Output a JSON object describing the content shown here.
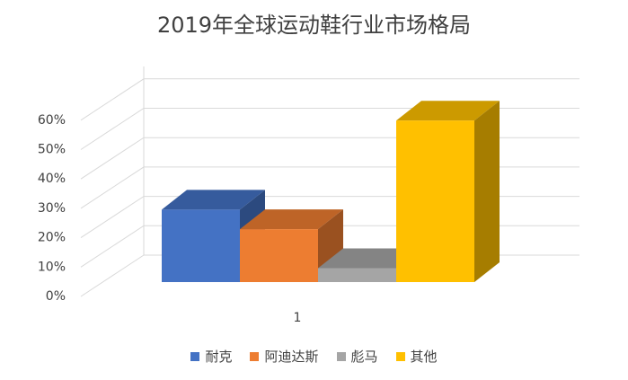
{
  "chart_data": {
    "type": "bar",
    "title": "2019年全球运动鞋行业市场格局",
    "categories": [
      "1"
    ],
    "series": [
      {
        "name": "耐克",
        "values": [
          0.26
        ],
        "color": "#4472C4"
      },
      {
        "name": "阿迪达斯",
        "values": [
          0.19
        ],
        "color": "#ED7D31"
      },
      {
        "name": "彪马",
        "values": [
          0.05
        ],
        "color": "#A5A5A5"
      },
      {
        "name": "其他",
        "values": [
          0.58
        ],
        "color": "#FFC000"
      }
    ],
    "ylim": [
      0,
      0.6
    ],
    "yticks": [
      "0%",
      "10%",
      "20%",
      "30%",
      "40%",
      "50%",
      "60%"
    ],
    "grid": true,
    "legend_position": "bottom",
    "style": "3d-clustered-column"
  }
}
